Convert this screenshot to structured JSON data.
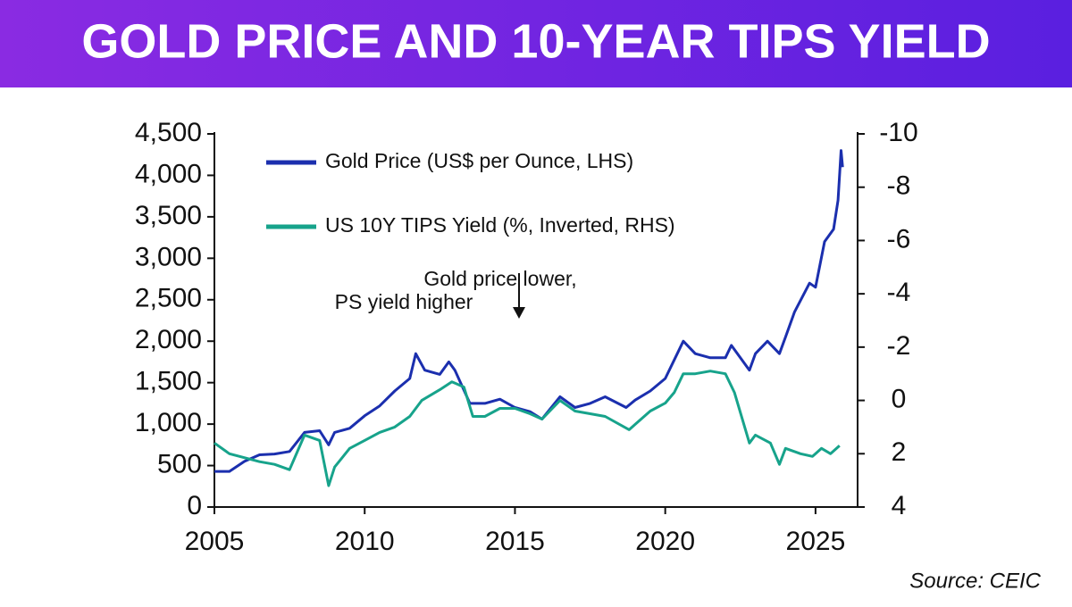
{
  "chart_data": {
    "type": "line",
    "title": "GOLD PRICE AND 10-YEAR TIPS YIELD",
    "annotation": [
      "Gold price lower,",
      "PS yield higher"
    ],
    "source": "Source: CEIC",
    "xlim": [
      2005,
      2026.4
    ],
    "xticks": [
      2005,
      2010,
      2015,
      2020,
      2025
    ],
    "ylim": [
      0,
      4500
    ],
    "yticks": [
      0,
      500,
      {
        "value": 1000,
        "label": "1,000"
      },
      {
        "value": 1500,
        "label": "1,500"
      },
      {
        "value": 2000,
        "label": "2,000"
      },
      {
        "value": 2500,
        "label": "2,500"
      },
      {
        "value": 3000,
        "label": "3,000"
      },
      {
        "value": 3500,
        "label": "3,500"
      },
      {
        "value": 4000,
        "label": "4,000"
      },
      {
        "value": 4500,
        "label": "4,500"
      }
    ],
    "y2lim": [
      -10,
      4
    ],
    "y2_inverted": true,
    "y2ticks": [
      -10,
      -8,
      -6,
      -4,
      -2,
      0,
      2,
      4
    ],
    "series": [
      {
        "name": "Gold Price (US$ per Ounce, LHS)",
        "color": "#1b2fae",
        "x": [
          2005.0,
          2005.5,
          2006.0,
          2006.5,
          2007.0,
          2007.5,
          2008.0,
          2008.5,
          2008.8,
          2009.0,
          2009.5,
          2010.0,
          2010.5,
          2011.0,
          2011.5,
          2011.7,
          2012.0,
          2012.5,
          2012.8,
          2013.0,
          2013.5,
          2014.0,
          2014.5,
          2015.0,
          2015.5,
          2015.9,
          2016.5,
          2017.0,
          2017.5,
          2018.0,
          2018.7,
          2019.0,
          2019.5,
          2020.0,
          2020.6,
          2021.0,
          2021.5,
          2022.0,
          2022.2,
          2022.8,
          2023.0,
          2023.4,
          2023.8,
          2024.0,
          2024.3,
          2024.8,
          2025.0,
          2025.3,
          2025.6,
          2025.75,
          2025.85,
          2025.9
        ],
        "values": [
          430,
          430,
          550,
          630,
          640,
          670,
          900,
          920,
          750,
          900,
          950,
          1100,
          1220,
          1400,
          1550,
          1850,
          1650,
          1600,
          1750,
          1650,
          1250,
          1250,
          1300,
          1200,
          1150,
          1060,
          1330,
          1200,
          1250,
          1330,
          1200,
          1290,
          1400,
          1550,
          2000,
          1850,
          1800,
          1800,
          1950,
          1650,
          1850,
          2000,
          1850,
          2050,
          2350,
          2700,
          2650,
          3200,
          3350,
          3700,
          4300,
          4100
        ]
      },
      {
        "name": "US 10Y TIPS Yield (%, Inverted, RHS)",
        "color": "#17a38b",
        "axis": "y2",
        "x": [
          2005.0,
          2005.5,
          2006.5,
          2007.0,
          2007.5,
          2008.0,
          2008.5,
          2008.8,
          2009.0,
          2009.5,
          2010.0,
          2010.5,
          2011.0,
          2011.5,
          2011.9,
          2012.5,
          2012.9,
          2013.3,
          2013.6,
          2014.0,
          2014.5,
          2015.0,
          2015.5,
          2015.9,
          2016.5,
          2017.0,
          2017.5,
          2018.0,
          2018.8,
          2019.0,
          2019.5,
          2020.0,
          2020.3,
          2020.6,
          2021.0,
          2021.5,
          2022.0,
          2022.3,
          2022.8,
          2023.0,
          2023.5,
          2023.8,
          2024.0,
          2024.5,
          2024.9,
          2025.2,
          2025.5,
          2025.8
        ],
        "values": [
          1.6,
          2.0,
          2.3,
          2.4,
          2.6,
          1.3,
          1.5,
          3.2,
          2.5,
          1.8,
          1.5,
          1.2,
          1.0,
          0.6,
          0.0,
          -0.4,
          -0.7,
          -0.5,
          0.6,
          0.6,
          0.3,
          0.3,
          0.5,
          0.7,
          0.0,
          0.4,
          0.5,
          0.6,
          1.1,
          0.9,
          0.4,
          0.1,
          -0.3,
          -1.0,
          -1.0,
          -1.1,
          -1.0,
          -0.3,
          1.6,
          1.3,
          1.6,
          2.4,
          1.8,
          2.0,
          2.1,
          1.8,
          2.0,
          1.7
        ]
      }
    ]
  }
}
